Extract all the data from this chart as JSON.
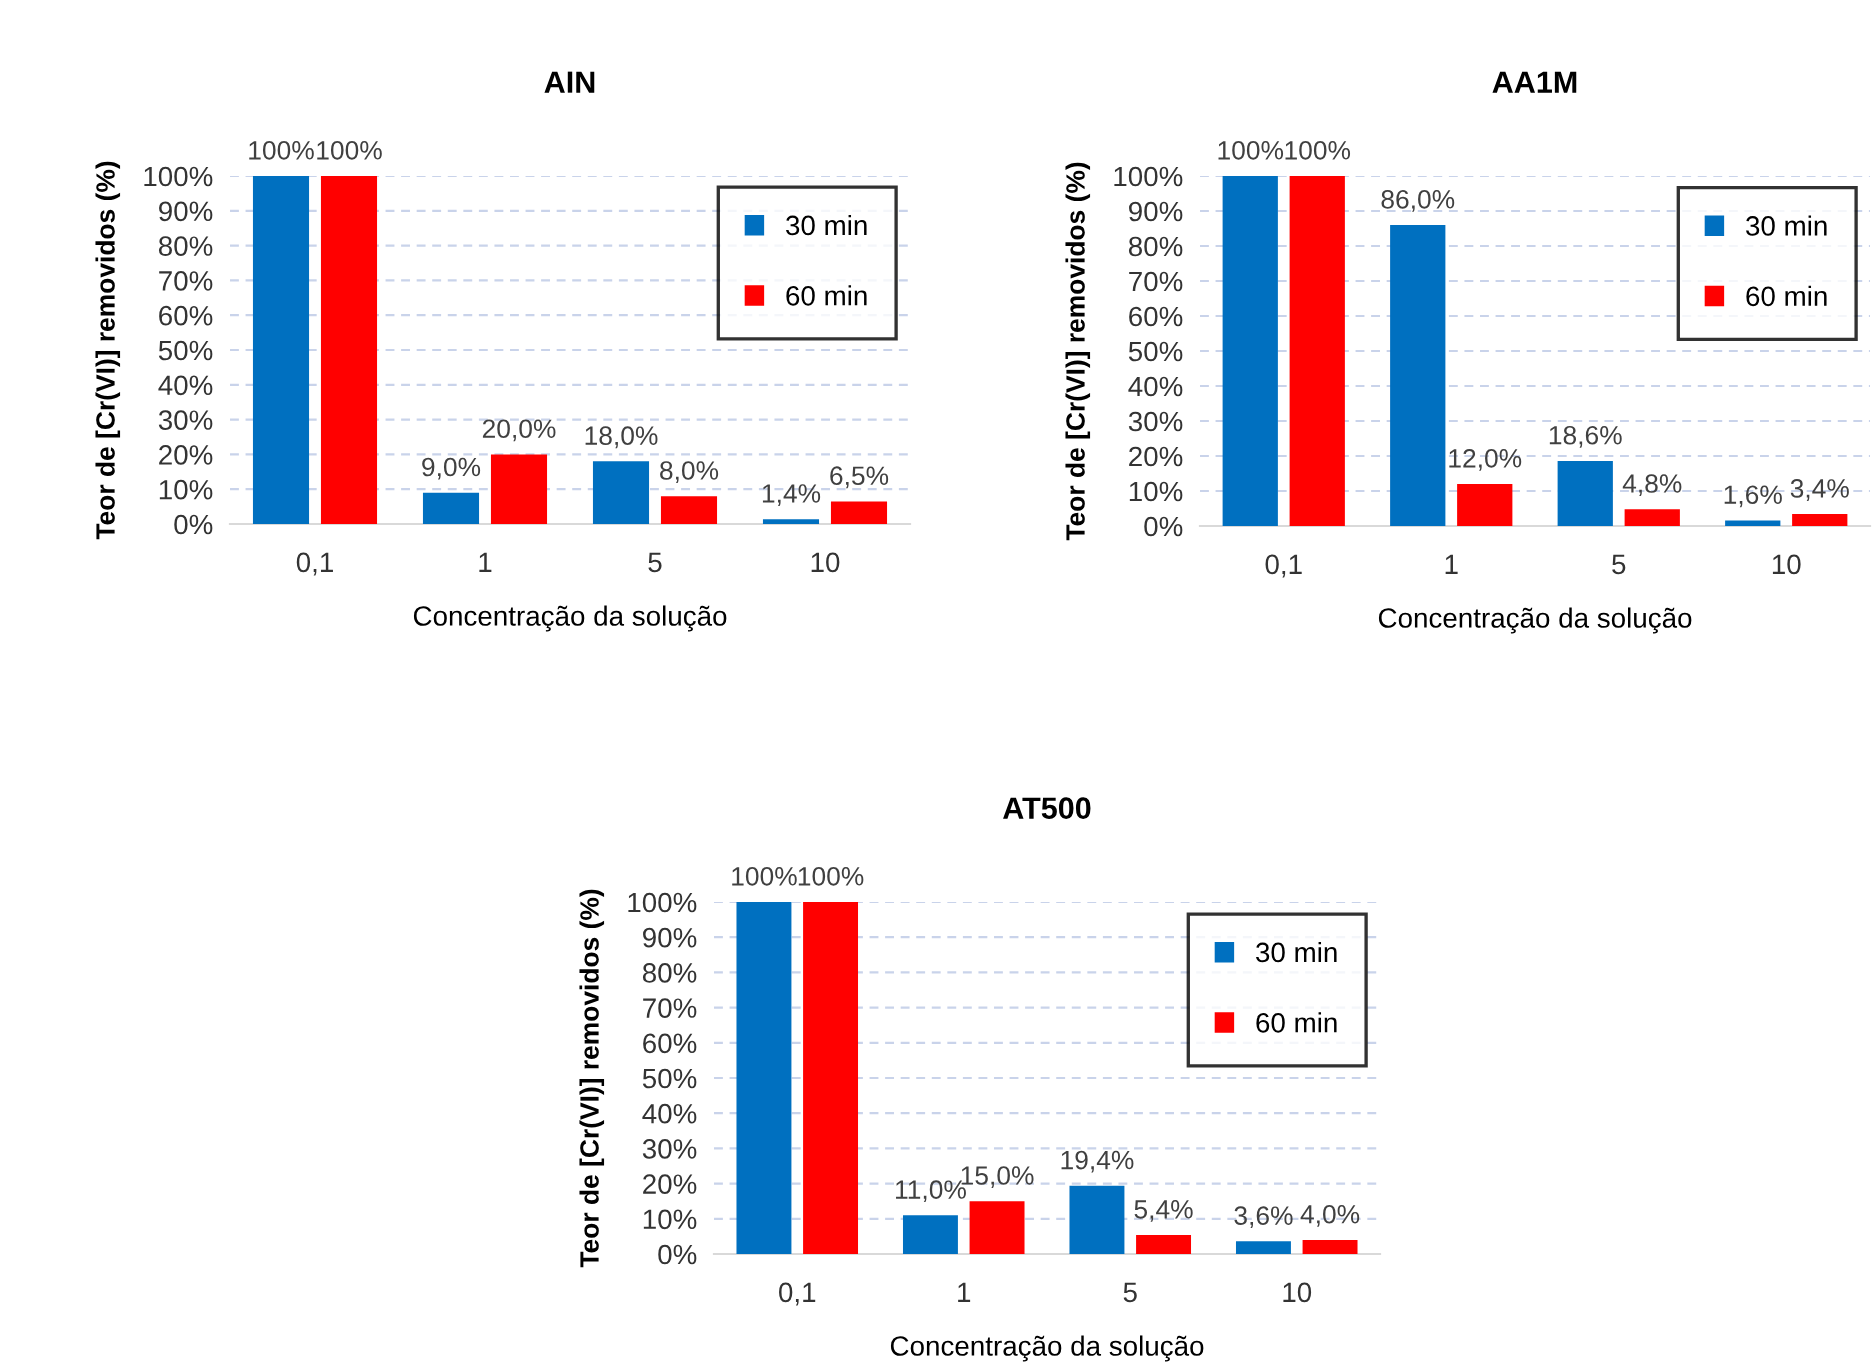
{
  "chart_data": [
    {
      "type": "bar",
      "title": "AIN",
      "xlabel": "Concentração da solução",
      "ylabel": "Teor de [Cr(VI)] removidos (%)",
      "categories": [
        "0,1",
        "1",
        "5",
        "10"
      ],
      "series": [
        {
          "name": "30 min",
          "color": "#0070c0",
          "values": [
            100,
            9.0,
            18.0,
            1.4
          ],
          "value_labels": [
            "100%",
            "9,0%",
            "18,0%",
            "1,4%"
          ]
        },
        {
          "name": "60 min",
          "color": "#ff0000",
          "values": [
            100,
            20.0,
            8.0,
            6.5
          ],
          "value_labels": [
            "100%",
            "20,0%",
            "8,0%",
            "6,5%"
          ]
        }
      ],
      "ylim": [
        0,
        100
      ],
      "yticks": [
        {
          "value": 0,
          "label": "0%"
        },
        {
          "value": 10,
          "label": "10%"
        },
        {
          "value": 20,
          "label": "20%"
        },
        {
          "value": 30,
          "label": "30%"
        },
        {
          "value": 40,
          "label": "40%"
        },
        {
          "value": 50,
          "label": "50%"
        },
        {
          "value": 60,
          "label": "60%"
        },
        {
          "value": 70,
          "label": "70%"
        },
        {
          "value": 80,
          "label": "80%"
        },
        {
          "value": 90,
          "label": "90%"
        },
        {
          "value": 100,
          "label": "100%"
        }
      ],
      "grid": "y",
      "legend": "right"
    },
    {
      "type": "bar",
      "title": "AA1M",
      "xlabel": "Concentração da solução",
      "ylabel": "Teor de [Cr(VI)] removidos (%)",
      "categories": [
        "0,1",
        "1",
        "5",
        "10"
      ],
      "series": [
        {
          "name": "30 min",
          "color": "#0070c0",
          "values": [
            100,
            86.0,
            18.6,
            1.6
          ],
          "value_labels": [
            "100%",
            "86,0%",
            "18,6%",
            "1,6%"
          ]
        },
        {
          "name": "60 min",
          "color": "#ff0000",
          "values": [
            100,
            12.0,
            4.8,
            3.4
          ],
          "value_labels": [
            "100%",
            "12,0%",
            "4,8%",
            "3,4%"
          ]
        }
      ],
      "ylim": [
        0,
        100
      ],
      "yticks": [
        {
          "value": 0,
          "label": "0%"
        },
        {
          "value": 10,
          "label": "10%"
        },
        {
          "value": 20,
          "label": "20%"
        },
        {
          "value": 30,
          "label": "30%"
        },
        {
          "value": 40,
          "label": "40%"
        },
        {
          "value": 50,
          "label": "50%"
        },
        {
          "value": 60,
          "label": "60%"
        },
        {
          "value": 70,
          "label": "70%"
        },
        {
          "value": 80,
          "label": "80%"
        },
        {
          "value": 90,
          "label": "90%"
        },
        {
          "value": 100,
          "label": "100%"
        }
      ],
      "grid": "y",
      "legend": "right"
    },
    {
      "type": "bar",
      "title": "AT500",
      "xlabel": "Concentração da solução",
      "ylabel": "Teor de [Cr(VI)] removidos (%)",
      "categories": [
        "0,1",
        "1",
        "5",
        "10"
      ],
      "series": [
        {
          "name": "30 min",
          "color": "#0070c0",
          "values": [
            100,
            11.0,
            19.4,
            3.6
          ],
          "value_labels": [
            "100%",
            "11,0%",
            "19,4%",
            "3,6%"
          ]
        },
        {
          "name": "60 min",
          "color": "#ff0000",
          "values": [
            100,
            15.0,
            5.4,
            4.0
          ],
          "value_labels": [
            "100%",
            "15,0%",
            "5,4%",
            "4,0%"
          ]
        }
      ],
      "ylim": [
        0,
        100
      ],
      "yticks": [
        {
          "value": 0,
          "label": "0%"
        },
        {
          "value": 10,
          "label": "10%"
        },
        {
          "value": 20,
          "label": "20%"
        },
        {
          "value": 30,
          "label": "30%"
        },
        {
          "value": 40,
          "label": "40%"
        },
        {
          "value": 50,
          "label": "50%"
        },
        {
          "value": 60,
          "label": "60%"
        },
        {
          "value": 70,
          "label": "70%"
        },
        {
          "value": 80,
          "label": "80%"
        },
        {
          "value": 90,
          "label": "90%"
        },
        {
          "value": 100,
          "label": "100%"
        }
      ],
      "grid": "y",
      "legend": "right"
    }
  ]
}
